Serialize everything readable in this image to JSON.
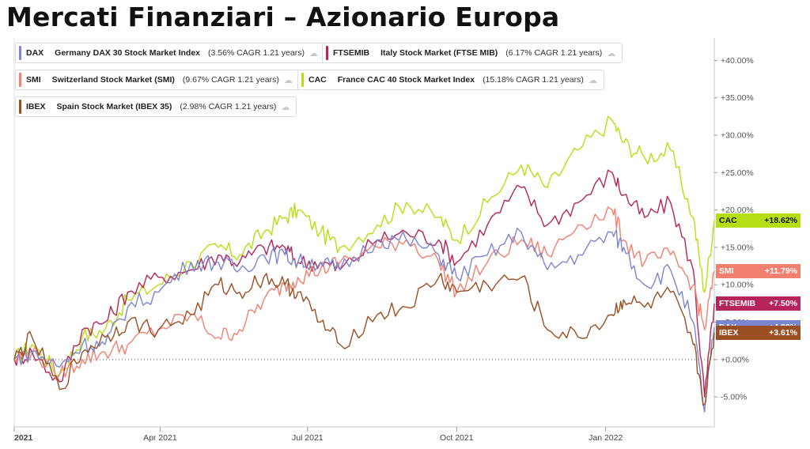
{
  "title": "Mercati Finanziari – Azionario Europa",
  "legend": [
    {
      "symbol": "DAX",
      "name": "Germany DAX 30 Stock Market Index",
      "cagr": "(3.56% CAGR 1.21 years)",
      "icon": "share-icon"
    },
    {
      "symbol": "FTSEMIB",
      "name": "Italy Stock Market (FTSE MIB)",
      "cagr": "(6.17% CAGR 1.21 years)",
      "icon": "share-icon"
    },
    {
      "symbol": "SMI",
      "name": "Switzerland Stock Market (SMI)",
      "cagr": "(9.67% CAGR 1.21 years)",
      "icon": "share-icon"
    },
    {
      "symbol": "CAC",
      "name": "France CAC 40 Stock Market Index",
      "cagr": "(15.18% CAGR 1.21 years)",
      "icon": "share-icon"
    },
    {
      "symbol": "IBEX",
      "name": "Spain Stock Market (IBEX 35)",
      "cagr": "(2.98% CAGR 1.21 years)",
      "icon": "share-icon"
    }
  ],
  "end_labels": [
    {
      "symbol": "CAC",
      "value": "+18.62%"
    },
    {
      "symbol": "SMI",
      "value": "+11.79%"
    },
    {
      "symbol": "FTSEMIB",
      "value": "+7.50%"
    },
    {
      "symbol": "DAX",
      "value": "+4.32%"
    },
    {
      "symbol": "IBEX",
      "value": "+3.61%"
    }
  ],
  "chart_data": {
    "type": "line",
    "title": "Mercati Finanziari – Azionario Europa",
    "xlabel": "",
    "ylabel": "",
    "x_range": [
      "2021-01-01",
      "2022-03-09"
    ],
    "ylim": [
      -9,
      43
    ],
    "yticks": [
      -5,
      0,
      5,
      10,
      15,
      20,
      25,
      30,
      35,
      40
    ],
    "ytick_labels": [
      "-5.00%",
      "+0.00%",
      "+5.00%",
      "+10.00%",
      "+15.00%",
      "+20.00%",
      "+25.00%",
      "+30.00%",
      "+35.00%",
      "+40.00%"
    ],
    "xticks": [
      "2021-01-01",
      "2021-04-01",
      "2021-07-01",
      "2021-10-01",
      "2022-01-01"
    ],
    "xtick_labels": [
      "2021",
      "Apr 2021",
      "Jul 2021",
      "Oct 2021",
      "Jan 2022"
    ],
    "zero_line": "dotted",
    "legend_position": "top-left",
    "series": [
      {
        "name": "CAC",
        "color": "#b5df13",
        "final": 18.62,
        "points": [
          [
            "2021-01-01",
            0
          ],
          [
            "2021-01-12",
            2
          ],
          [
            "2021-01-29",
            -2
          ],
          [
            "2021-02-12",
            3
          ],
          [
            "2021-02-26",
            4
          ],
          [
            "2021-03-12",
            8
          ],
          [
            "2021-03-31",
            10
          ],
          [
            "2021-04-20",
            13
          ],
          [
            "2021-05-07",
            15
          ],
          [
            "2021-05-20",
            14
          ],
          [
            "2021-06-04",
            17
          ],
          [
            "2021-06-17",
            19
          ],
          [
            "2021-06-25",
            20
          ],
          [
            "2021-07-09",
            17
          ],
          [
            "2021-07-21",
            15
          ],
          [
            "2021-08-13",
            18
          ],
          [
            "2021-08-31",
            21
          ],
          [
            "2021-09-20",
            19
          ],
          [
            "2021-10-01",
            16
          ],
          [
            "2021-10-20",
            21
          ],
          [
            "2021-11-10",
            26
          ],
          [
            "2021-11-26",
            23
          ],
          [
            "2021-12-15",
            28
          ],
          [
            "2022-01-05",
            32
          ],
          [
            "2022-01-12",
            29
          ],
          [
            "2022-01-25",
            27
          ],
          [
            "2022-02-10",
            28
          ],
          [
            "2022-02-24",
            19
          ],
          [
            "2022-03-03",
            9
          ],
          [
            "2022-03-09",
            18.62
          ]
        ]
      },
      {
        "name": "FTSEMIB",
        "color": "#b5245a",
        "final": 7.5,
        "points": [
          [
            "2021-01-01",
            0
          ],
          [
            "2021-01-12",
            1
          ],
          [
            "2021-01-29",
            -3
          ],
          [
            "2021-02-12",
            4
          ],
          [
            "2021-02-26",
            5
          ],
          [
            "2021-03-12",
            9
          ],
          [
            "2021-03-31",
            11
          ],
          [
            "2021-04-20",
            12
          ],
          [
            "2021-05-07",
            14
          ],
          [
            "2021-05-20",
            13
          ],
          [
            "2021-06-04",
            15
          ],
          [
            "2021-06-17",
            15
          ],
          [
            "2021-06-25",
            13
          ],
          [
            "2021-07-09",
            13
          ],
          [
            "2021-07-21",
            12
          ],
          [
            "2021-08-13",
            16
          ],
          [
            "2021-08-31",
            17
          ],
          [
            "2021-09-20",
            16
          ],
          [
            "2021-10-01",
            13
          ],
          [
            "2021-10-20",
            18
          ],
          [
            "2021-11-10",
            23
          ],
          [
            "2021-11-26",
            18
          ],
          [
            "2021-12-15",
            21
          ],
          [
            "2022-01-05",
            25
          ],
          [
            "2022-01-12",
            22
          ],
          [
            "2022-01-25",
            19
          ],
          [
            "2022-02-10",
            21
          ],
          [
            "2022-02-24",
            12
          ],
          [
            "2022-03-03",
            -5
          ],
          [
            "2022-03-09",
            7.5
          ]
        ]
      },
      {
        "name": "SMI",
        "color": "#f08070",
        "final": 11.79,
        "points": [
          [
            "2021-01-01",
            0
          ],
          [
            "2021-01-12",
            1
          ],
          [
            "2021-01-29",
            -2
          ],
          [
            "2021-02-12",
            0
          ],
          [
            "2021-02-26",
            1
          ],
          [
            "2021-03-12",
            2
          ],
          [
            "2021-03-31",
            4
          ],
          [
            "2021-04-20",
            6
          ],
          [
            "2021-05-07",
            3
          ],
          [
            "2021-05-20",
            4
          ],
          [
            "2021-06-04",
            8
          ],
          [
            "2021-06-17",
            10
          ],
          [
            "2021-06-25",
            11
          ],
          [
            "2021-07-09",
            12
          ],
          [
            "2021-07-21",
            13
          ],
          [
            "2021-08-13",
            15
          ],
          [
            "2021-08-31",
            16
          ],
          [
            "2021-09-20",
            13
          ],
          [
            "2021-10-01",
            9
          ],
          [
            "2021-10-20",
            13
          ],
          [
            "2021-11-10",
            16
          ],
          [
            "2021-11-26",
            14
          ],
          [
            "2021-12-15",
            18
          ],
          [
            "2022-01-05",
            20
          ],
          [
            "2022-01-12",
            16
          ],
          [
            "2022-01-25",
            13
          ],
          [
            "2022-02-10",
            14
          ],
          [
            "2022-02-24",
            10
          ],
          [
            "2022-03-03",
            4
          ],
          [
            "2022-03-09",
            11.79
          ]
        ]
      },
      {
        "name": "DAX",
        "color": "#7b86d1",
        "final": 4.32,
        "points": [
          [
            "2021-01-01",
            0
          ],
          [
            "2021-01-12",
            1
          ],
          [
            "2021-01-29",
            -1
          ],
          [
            "2021-02-12",
            2
          ],
          [
            "2021-02-26",
            2
          ],
          [
            "2021-03-12",
            7
          ],
          [
            "2021-03-31",
            9
          ],
          [
            "2021-04-20",
            13
          ],
          [
            "2021-05-07",
            13
          ],
          [
            "2021-05-20",
            12
          ],
          [
            "2021-06-04",
            14
          ],
          [
            "2021-06-17",
            14
          ],
          [
            "2021-06-25",
            13
          ],
          [
            "2021-07-09",
            13
          ],
          [
            "2021-07-21",
            12
          ],
          [
            "2021-08-13",
            16
          ],
          [
            "2021-08-31",
            16
          ],
          [
            "2021-09-20",
            14
          ],
          [
            "2021-10-01",
            11
          ],
          [
            "2021-10-20",
            14
          ],
          [
            "2021-11-10",
            17
          ],
          [
            "2021-11-26",
            12
          ],
          [
            "2021-12-15",
            14
          ],
          [
            "2022-01-05",
            17
          ],
          [
            "2022-01-12",
            15
          ],
          [
            "2022-01-25",
            10
          ],
          [
            "2022-02-10",
            12
          ],
          [
            "2022-02-24",
            5
          ],
          [
            "2022-03-03",
            -7
          ],
          [
            "2022-03-09",
            4.32
          ]
        ]
      },
      {
        "name": "IBEX",
        "color": "#9a4f22",
        "final": 3.61,
        "points": [
          [
            "2021-01-01",
            0
          ],
          [
            "2021-01-12",
            3
          ],
          [
            "2021-01-29",
            -4
          ],
          [
            "2021-02-12",
            1
          ],
          [
            "2021-02-26",
            3
          ],
          [
            "2021-03-12",
            5
          ],
          [
            "2021-03-31",
            4
          ],
          [
            "2021-04-20",
            6
          ],
          [
            "2021-05-07",
            10
          ],
          [
            "2021-05-20",
            9
          ],
          [
            "2021-06-04",
            11
          ],
          [
            "2021-06-17",
            10
          ],
          [
            "2021-06-25",
            9
          ],
          [
            "2021-07-09",
            5
          ],
          [
            "2021-07-21",
            2
          ],
          [
            "2021-08-13",
            6
          ],
          [
            "2021-08-31",
            7
          ],
          [
            "2021-09-20",
            11
          ],
          [
            "2021-10-01",
            9
          ],
          [
            "2021-10-20",
            10
          ],
          [
            "2021-11-10",
            11
          ],
          [
            "2021-11-26",
            4
          ],
          [
            "2021-12-15",
            3
          ],
          [
            "2022-01-05",
            6
          ],
          [
            "2022-01-12",
            8
          ],
          [
            "2022-01-25",
            7
          ],
          [
            "2022-02-10",
            9
          ],
          [
            "2022-02-24",
            2
          ],
          [
            "2022-03-03",
            -6
          ],
          [
            "2022-03-09",
            3.61
          ]
        ]
      }
    ]
  }
}
